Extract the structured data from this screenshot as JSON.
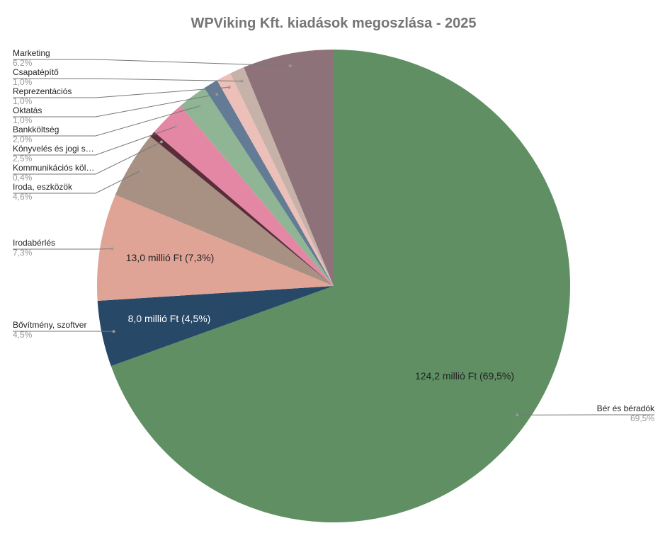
{
  "chart_data": {
    "type": "pie",
    "title": "WPViking Kft. kiadások megoszlása - 2025",
    "unit": "millió Ft",
    "slices": [
      {
        "label": "Bér és béradók",
        "pct": 69.5,
        "pct_text": "69,5%",
        "value_text": "124,2 millió Ft (69,5%)",
        "color": "#5f8f63",
        "label_color": "#222222"
      },
      {
        "label": "Bővítmény, szoftver",
        "pct": 4.5,
        "pct_text": "4,5%",
        "value_text": "8,0 millió Ft (4,5%)",
        "color": "#274867",
        "label_color": "#ffffff"
      },
      {
        "label": "Irodabérlés",
        "pct": 7.3,
        "pct_text": "7,3%",
        "value_text": "13,0 millió Ft (7,3%)",
        "color": "#e0a496",
        "label_color": "#222222"
      },
      {
        "label": "Iroda, eszközök",
        "pct": 4.6,
        "pct_text": "4,6%",
        "color": "#a89083"
      },
      {
        "label": "Kommunikációs köl…",
        "pct": 0.4,
        "pct_text": "0,4%",
        "color": "#5a2d3a"
      },
      {
        "label": "Könyvelés és jogi s…",
        "pct": 2.5,
        "pct_text": "2,5%",
        "color": "#e487a4"
      },
      {
        "label": "Bankköltség",
        "pct": 2.0,
        "pct_text": "2,0%",
        "color": "#8fb594"
      },
      {
        "label": "Oktatás",
        "pct": 1.0,
        "pct_text": "1,0%",
        "color": "#637b95"
      },
      {
        "label": "Reprezentációs",
        "pct": 1.0,
        "pct_text": "1,0%",
        "color": "#ecbfb8"
      },
      {
        "label": "Csapatépítő",
        "pct": 1.0,
        "pct_text": "1,0%",
        "color": "#c7b2aa"
      },
      {
        "label": "Marketing",
        "pct": 6.2,
        "pct_text": "6,2%",
        "color": "#8e727a"
      }
    ]
  }
}
